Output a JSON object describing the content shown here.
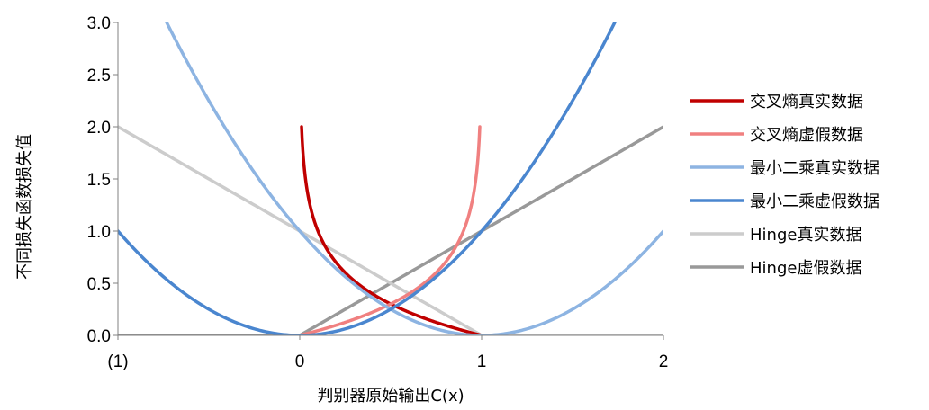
{
  "chart_data": {
    "type": "line",
    "title": "",
    "xlabel": "判别器原始输出C(x)",
    "ylabel": "不同损失函数损失值",
    "xlim": [
      -1,
      2
    ],
    "ylim": [
      0,
      3
    ],
    "x_ticks": [
      -1,
      0,
      1,
      2
    ],
    "x_tick_labels": [
      "(1)",
      "0",
      "1",
      "2"
    ],
    "y_ticks": [
      0,
      0.5,
      1,
      1.5,
      2,
      2.5,
      3
    ],
    "y_tick_labels": [
      "0.0",
      "0.5",
      "1.0",
      "1.5",
      "2.0",
      "2.5",
      "3.0"
    ],
    "grid": false,
    "legend_position": "right",
    "series": [
      {
        "name": "交叉熵真实数据",
        "color": "#C00000",
        "formula": "-log10(x)",
        "points": [
          [
            0.01,
            2.0
          ],
          [
            0.02,
            1.7
          ],
          [
            0.05,
            1.3
          ],
          [
            0.1,
            1.0
          ],
          [
            0.2,
            0.7
          ],
          [
            0.3,
            0.52
          ],
          [
            0.4,
            0.4
          ],
          [
            0.5,
            0.3
          ],
          [
            0.6,
            0.22
          ],
          [
            0.7,
            0.15
          ],
          [
            0.8,
            0.1
          ],
          [
            0.9,
            0.05
          ],
          [
            1.0,
            0.0
          ]
        ]
      },
      {
        "name": "交叉熵虚假数据",
        "color": "#F08080",
        "formula": "-log10(1-x)",
        "points": [
          [
            0.0,
            0.0
          ],
          [
            0.1,
            0.05
          ],
          [
            0.2,
            0.1
          ],
          [
            0.3,
            0.15
          ],
          [
            0.4,
            0.22
          ],
          [
            0.5,
            0.3
          ],
          [
            0.6,
            0.4
          ],
          [
            0.7,
            0.52
          ],
          [
            0.8,
            0.7
          ],
          [
            0.9,
            1.0
          ],
          [
            0.95,
            1.3
          ],
          [
            0.98,
            1.7
          ],
          [
            0.99,
            2.0
          ]
        ]
      },
      {
        "name": "最小二乘真实数据",
        "color": "#8DB4E2",
        "formula": "(x-1)^2",
        "points": [
          [
            -0.73,
            3.0
          ],
          [
            -0.5,
            2.25
          ],
          [
            0.0,
            1.0
          ],
          [
            0.5,
            0.25
          ],
          [
            1.0,
            0.0
          ],
          [
            1.5,
            0.25
          ],
          [
            2.0,
            1.0
          ]
        ]
      },
      {
        "name": "最小二乘虚假数据",
        "color": "#4A86CF",
        "formula": "x^2",
        "points": [
          [
            -1.0,
            1.0
          ],
          [
            -0.5,
            0.25
          ],
          [
            0.0,
            0.0
          ],
          [
            0.5,
            0.25
          ],
          [
            1.0,
            1.0
          ],
          [
            1.5,
            2.25
          ],
          [
            1.73,
            3.0
          ]
        ]
      },
      {
        "name": "Hinge真实数据",
        "color": "#CCCCCC",
        "formula": "max(0, 1-x)",
        "points": [
          [
            -1.0,
            2.0
          ],
          [
            0.0,
            1.0
          ],
          [
            1.0,
            0.0
          ],
          [
            2.0,
            0.0
          ]
        ]
      },
      {
        "name": "Hinge虚假数据",
        "color": "#999999",
        "formula": "max(0, x)",
        "points": [
          [
            -1.0,
            0.0
          ],
          [
            0.0,
            0.0
          ],
          [
            1.0,
            1.0
          ],
          [
            2.0,
            2.0
          ]
        ]
      }
    ]
  }
}
